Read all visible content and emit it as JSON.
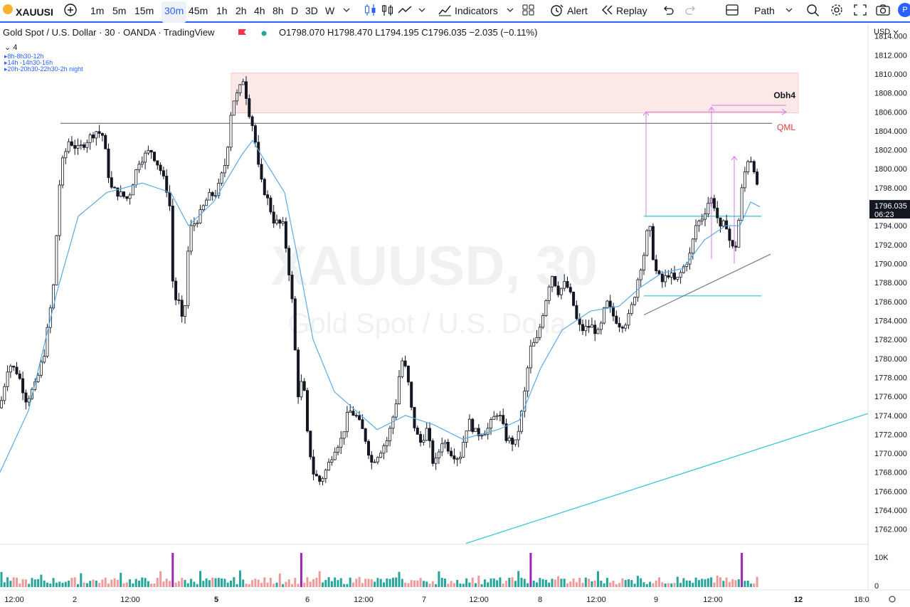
{
  "toolbar": {
    "symbol": "XAUUSI",
    "intervals": [
      "1m",
      "5m",
      "15m",
      "30m",
      "45m",
      "1h",
      "2h",
      "4h",
      "8h",
      "D",
      "3D",
      "W"
    ],
    "active_interval": "30m",
    "indicators_label": "Indicators",
    "alert_label": "Alert",
    "replay_label": "Replay",
    "path_label": "Path"
  },
  "legend": {
    "title": "Gold Spot / U.S. Dollar · 30 · OANDA · TradingView",
    "open": "O1798.070",
    "high": "H1798.470",
    "low": "L1794.195",
    "close": "C1796.035",
    "change": "−2.035 (−0.11%)",
    "collapse_count": "4",
    "sessions": [
      "▸8h-8h30-12h",
      "▸14h -14h30-16h",
      "▸20h-20h30-22h30-2h night"
    ]
  },
  "watermark": {
    "symbol": "XAUUSD, 30",
    "name": "Gold Spot / U.S. Dolla"
  },
  "colors": {
    "up": "#ffffff",
    "down": "#131722",
    "ma": "#5aa9e6",
    "zone": "#fde8e8",
    "accent": "#2962ff",
    "qml": "#e53935",
    "cyan": "#26c6da",
    "magenta": "#d67ae6",
    "vol_up": "#26a69a",
    "vol_down": "#ef9a9a",
    "vol_spike": "#9c27b0"
  },
  "chart_data": {
    "type": "candlestick",
    "currency": "USD",
    "price_axis_ticks": [
      1814,
      1812,
      1810,
      1808,
      1806,
      1804,
      1802,
      1800,
      1798,
      1796,
      1794,
      1792,
      1790,
      1788,
      1786,
      1784,
      1782,
      1780,
      1778,
      1776,
      1774,
      1772,
      1770,
      1768,
      1766,
      1764,
      1762
    ],
    "price_range": [
      1760.4,
      1814.8
    ],
    "time_labels": [
      "12:00",
      "2",
      "12:00",
      "5",
      "6",
      "12:00",
      "7",
      "12:00",
      "8",
      "12:00",
      "9",
      "12:00",
      "12",
      "18:0"
    ],
    "current_price": "1796.035",
    "countdown": "06:23",
    "volume_axis_labels": [
      "10K",
      "0"
    ],
    "close_path": [
      [
        0,
        1774.8
      ],
      [
        12,
        1779.5
      ],
      [
        25,
        1778.5
      ],
      [
        37,
        1775.6
      ],
      [
        50,
        1777.2
      ],
      [
        62,
        1780.5
      ],
      [
        75,
        1787.5
      ],
      [
        85,
        1800.0
      ],
      [
        97,
        1803.0
      ],
      [
        110,
        1802.0
      ],
      [
        122,
        1803.0
      ],
      [
        135,
        1804.0
      ],
      [
        145,
        1803.5
      ],
      [
        155,
        1798.0
      ],
      [
        165,
        1797.5
      ],
      [
        180,
        1796.8
      ],
      [
        195,
        1800.8
      ],
      [
        212,
        1802.0
      ],
      [
        225,
        1800.0
      ],
      [
        238,
        1797.0
      ],
      [
        244,
        1786.0
      ],
      [
        250,
        1786.5
      ],
      [
        258,
        1783.0
      ],
      [
        266,
        1793.5
      ],
      [
        280,
        1795.0
      ],
      [
        292,
        1797.0
      ],
      [
        305,
        1797.5
      ],
      [
        318,
        1801.0
      ],
      [
        326,
        1807.0
      ],
      [
        335,
        1808.0
      ],
      [
        342,
        1809.5
      ],
      [
        350,
        1806.0
      ],
      [
        357,
        1804.0
      ],
      [
        365,
        1799.0
      ],
      [
        375,
        1797.0
      ],
      [
        385,
        1794.5
      ],
      [
        398,
        1794.0
      ],
      [
        405,
        1790.0
      ],
      [
        412,
        1785.0
      ],
      [
        418,
        1776.0
      ],
      [
        426,
        1778.0
      ],
      [
        432,
        1772.0
      ],
      [
        440,
        1768.0
      ],
      [
        450,
        1767.0
      ],
      [
        460,
        1768.5
      ],
      [
        470,
        1770.5
      ],
      [
        480,
        1771.5
      ],
      [
        490,
        1774.5
      ],
      [
        500,
        1774.0
      ],
      [
        512,
        1772.0
      ],
      [
        522,
        1769.0
      ],
      [
        532,
        1770.0
      ],
      [
        545,
        1771.5
      ],
      [
        556,
        1775.0
      ],
      [
        564,
        1780.0
      ],
      [
        572,
        1778.5
      ],
      [
        580,
        1773.5
      ],
      [
        590,
        1771.0
      ],
      [
        600,
        1772.5
      ],
      [
        610,
        1768.5
      ],
      [
        622,
        1771.5
      ],
      [
        635,
        1770.0
      ],
      [
        646,
        1769.5
      ],
      [
        658,
        1773.5
      ],
      [
        670,
        1772.0
      ],
      [
        685,
        1772.5
      ],
      [
        700,
        1774.5
      ],
      [
        712,
        1771.5
      ],
      [
        725,
        1771.0
      ],
      [
        735,
        1775.0
      ],
      [
        745,
        1781.0
      ],
      [
        755,
        1782.0
      ],
      [
        765,
        1785.5
      ],
      [
        775,
        1789.0
      ],
      [
        785,
        1787.0
      ],
      [
        795,
        1788.0
      ],
      [
        805,
        1786.0
      ],
      [
        812,
        1783.5
      ],
      [
        820,
        1783.0
      ],
      [
        830,
        1783.5
      ],
      [
        842,
        1782.5
      ],
      [
        852,
        1786.0
      ],
      [
        862,
        1784.5
      ],
      [
        872,
        1783.5
      ],
      [
        882,
        1784.0
      ],
      [
        890,
        1786.0
      ],
      [
        898,
        1789.0
      ],
      [
        905,
        1791.0
      ],
      [
        912,
        1794.5
      ],
      [
        920,
        1789.5
      ],
      [
        930,
        1788.0
      ],
      [
        940,
        1789.0
      ],
      [
        950,
        1788.0
      ],
      [
        960,
        1789.5
      ],
      [
        970,
        1791.0
      ],
      [
        978,
        1794.0
      ],
      [
        988,
        1795.0
      ],
      [
        998,
        1797.0
      ],
      [
        1005,
        1796.0
      ],
      [
        1012,
        1793.5
      ],
      [
        1020,
        1794.5
      ],
      [
        1028,
        1791.5
      ],
      [
        1035,
        1792.0
      ],
      [
        1042,
        1797.5
      ],
      [
        1050,
        1801.0
      ],
      [
        1058,
        1801.0
      ],
      [
        1064,
        1798.0
      ],
      [
        1068,
        1796.0
      ]
    ],
    "ma_path": [
      [
        0,
        1768.0
      ],
      [
        40,
        1774.5
      ],
      [
        80,
        1787.0
      ],
      [
        110,
        1795.0
      ],
      [
        150,
        1797.5
      ],
      [
        200,
        1798.5
      ],
      [
        240,
        1797.5
      ],
      [
        265,
        1794.0
      ],
      [
        300,
        1796.5
      ],
      [
        340,
        1801.5
      ],
      [
        355,
        1803.0
      ],
      [
        375,
        1800.5
      ],
      [
        400,
        1797.5
      ],
      [
        420,
        1790.0
      ],
      [
        440,
        1782.0
      ],
      [
        470,
        1776.5
      ],
      [
        500,
        1774.5
      ],
      [
        530,
        1772.5
      ],
      [
        570,
        1774.0
      ],
      [
        610,
        1773.0
      ],
      [
        650,
        1771.5
      ],
      [
        700,
        1772.5
      ],
      [
        730,
        1773.5
      ],
      [
        760,
        1779.0
      ],
      [
        790,
        1783.0
      ],
      [
        830,
        1785.0
      ],
      [
        870,
        1785.5
      ],
      [
        900,
        1787.5
      ],
      [
        930,
        1789.0
      ],
      [
        960,
        1789.5
      ],
      [
        990,
        1792.5
      ],
      [
        1020,
        1794.0
      ],
      [
        1040,
        1794.0
      ],
      [
        1055,
        1796.5
      ],
      [
        1068,
        1796.0
      ]
    ],
    "annotations": {
      "zone": {
        "label": "Obh4",
        "from_x": 325,
        "to_x": 1122,
        "price_top": 1810.1,
        "price_bottom": 1805.9
      },
      "qml": {
        "label": "QML",
        "price": 1804.8,
        "from_x": 85,
        "to_x": 1085
      },
      "support_level": {
        "price": 1786.6,
        "from_x": 905,
        "to_x": 1070
      },
      "resistance_level": {
        "price": 1795.0,
        "from_x": 905,
        "to_x": 1070
      },
      "trendline_short": {
        "x1": 905,
        "p1": 1784.6,
        "x2": 1083,
        "p2": 1791.0
      },
      "trendline_long": {
        "x1": 655,
        "p1": 1760.5,
        "x2": 1220,
        "p2": 1774.2
      },
      "targets": [
        {
          "x": 908,
          "from": 1795.0,
          "to": 1806.0
        },
        {
          "x": 1000,
          "from": 1790.5,
          "to": 1806.5
        },
        {
          "x": 1032,
          "from": 1790.0,
          "to": 1801.3
        }
      ]
    }
  }
}
